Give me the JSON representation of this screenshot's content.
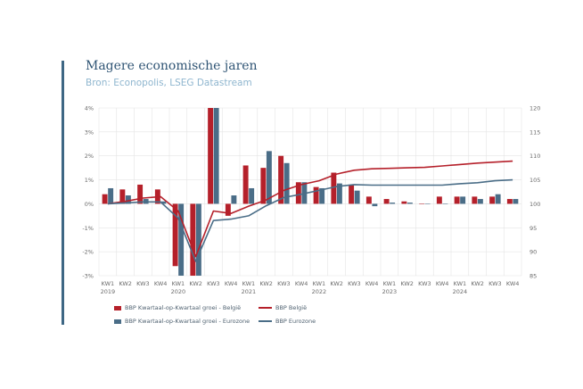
{
  "header": {
    "title": "Magere economische jaren",
    "subtitle": "Bron: Econopolis, LSEG Datastream"
  },
  "colors": {
    "belgie": "#b5202a",
    "eurozone": "#4a6d87",
    "grid": "#e4e4e4",
    "accent": "#3e6784"
  },
  "chart_data": {
    "type": "bar",
    "title": "Magere economische jaren",
    "quarters": [
      "KW1",
      "KW2",
      "KW3",
      "KW4",
      "KW1",
      "KW2",
      "KW3",
      "KW4",
      "KW1",
      "KW2",
      "KW3",
      "KW4",
      "KW1",
      "KW2",
      "KW3",
      "KW4",
      "KW1",
      "KW2",
      "KW3",
      "KW4",
      "KW1",
      "KW2",
      "KW3",
      "KW4"
    ],
    "years": [
      {
        "label": "2019",
        "index": 0
      },
      {
        "label": "2020",
        "index": 4
      },
      {
        "label": "2021",
        "index": 8
      },
      {
        "label": "2022",
        "index": 12
      },
      {
        "label": "2023",
        "index": 16
      },
      {
        "label": "2024",
        "index": 20
      }
    ],
    "y_left": {
      "ticks": [
        "4%",
        "3%",
        "2%",
        "1%",
        "0%",
        "-1%",
        "-2%",
        "-3%"
      ],
      "range": [
        -3,
        4
      ]
    },
    "y_right": {
      "ticks": [
        "120",
        "115",
        "110",
        "105",
        "100",
        "95",
        "90",
        "85"
      ],
      "range": [
        85,
        120
      ]
    },
    "series": [
      {
        "name": "BBP Kwartaal-op-Kwartaal groei - België",
        "kind": "bar",
        "axis": "left",
        "values": [
          0.4,
          0.6,
          0.8,
          0.6,
          -2.6,
          -3.0,
          4.0,
          -0.5,
          1.6,
          1.5,
          2.0,
          0.9,
          0.7,
          1.3,
          0.8,
          0.3,
          0.2,
          0.1,
          0.0,
          0.3,
          0.3,
          0.3,
          0.3,
          0.2
        ]
      },
      {
        "name": "BBP Kwartaal-op-Kwartaal groei - Eurozone",
        "kind": "bar",
        "axis": "left",
        "values": [
          0.65,
          0.35,
          0.2,
          0.1,
          -3.0,
          -3.0,
          4.0,
          0.35,
          0.65,
          2.2,
          1.7,
          0.9,
          0.65,
          0.85,
          0.55,
          -0.1,
          0.05,
          0.05,
          0.0,
          0.0,
          0.3,
          0.2,
          0.4,
          0.2
        ]
      },
      {
        "name": "BBP België",
        "kind": "line",
        "axis": "right",
        "values": [
          100.0,
          100.5,
          101.2,
          101.5,
          98.5,
          89.0,
          98.5,
          98.0,
          99.5,
          100.8,
          102.8,
          104.0,
          104.8,
          106.2,
          107.0,
          107.3,
          107.4,
          107.5,
          107.6,
          107.9,
          108.2,
          108.5,
          108.7,
          108.9
        ]
      },
      {
        "name": "BBP Eurozone",
        "kind": "line",
        "axis": "right",
        "values": [
          100.0,
          100.2,
          100.4,
          100.4,
          97.0,
          88.0,
          96.5,
          96.8,
          97.5,
          99.6,
          101.3,
          102.0,
          102.8,
          103.6,
          104.0,
          103.9,
          103.9,
          103.9,
          103.9,
          103.9,
          104.2,
          104.4,
          104.8,
          105.0
        ]
      }
    ],
    "legend": {
      "position": "bottom-left"
    },
    "grid": true
  }
}
